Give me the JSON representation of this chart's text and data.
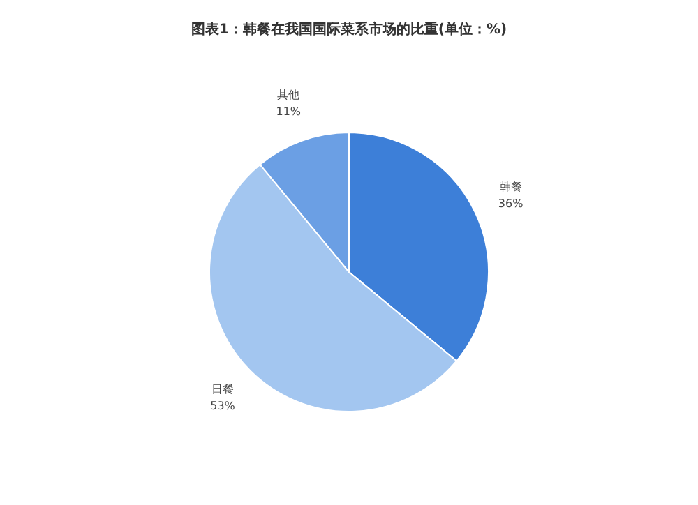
{
  "chart_data": {
    "type": "pie",
    "title": "图表1：韩餐在我国国际菜系市场的比重(单位：%)",
    "categories": [
      "韩餐",
      "日餐",
      "其他"
    ],
    "values": [
      36,
      53,
      11
    ],
    "colors": [
      "#3d7fd8",
      "#a3c6f0",
      "#6b9fe4"
    ],
    "value_labels": [
      "36%",
      "53%",
      "11%"
    ]
  }
}
